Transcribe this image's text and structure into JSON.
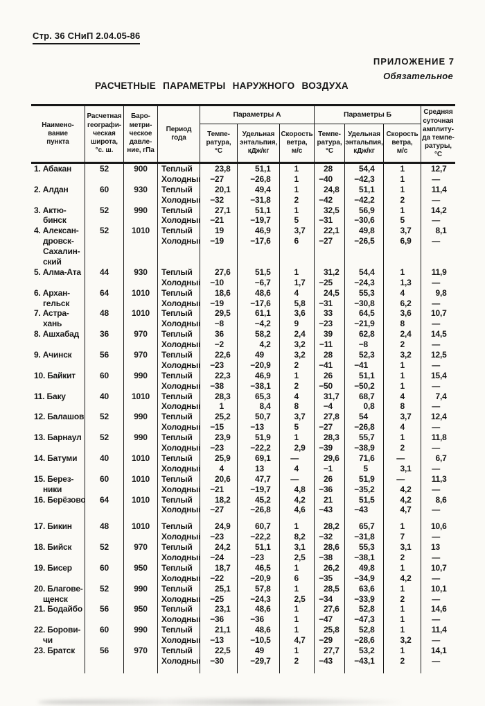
{
  "page": {
    "doc_ref": "Стр. 36 СНиП 2.04.05-86",
    "appendix": "ПРИЛОЖЕНИЕ 7",
    "appendix_note": "Обязательное",
    "title": "РАСЧЕТНЫЕ ПАРАМЕТРЫ НАРУЖНОГО ВОЗДУХА"
  },
  "table": {
    "header": {
      "name": "Наимено-\nвание\nпункта",
      "latitude": "Расчетная\nгеографи-\nческая\nширота,\n°с. ш.",
      "pressure": "Баро-\nметри-\nческое\nдавле-\nние, гПа",
      "period": "Период\nгода",
      "group_a": "Параметры А",
      "group_b": "Параметры Б",
      "temperature": "Темпе-\nратура,\n°С",
      "enthalpy": "Удельная\nэнтальпия,\nкДж/кг",
      "wind": "Скорость\nветра,\nм/с",
      "amplitude": "Средняя\nсуточная\nамплиту-\nда темпе-\nратуры,\n°С"
    },
    "cities": [
      {
        "name_lines": [
          "1. Абакан"
        ],
        "lat": "52",
        "pressure": "900",
        "rows": [
          [
            "Теплый",
            "23,8",
            "51,1",
            "1",
            "28",
            "54,4",
            "1",
            "12,7"
          ],
          [
            "Холодный",
            "−27",
            "−26,8",
            "1",
            "−40",
            "−42,3",
            "1",
            "—"
          ]
        ]
      },
      {
        "name_lines": [
          "2. Алдан"
        ],
        "lat": "60",
        "pressure": "930",
        "rows": [
          [
            "Теплый",
            "20,1",
            "49,4",
            "1",
            "24,8",
            "51,1",
            "1",
            "11,4"
          ],
          [
            "Холодный",
            "−32",
            "−31,8",
            "2",
            "−42",
            "−42,2",
            "2",
            "—"
          ]
        ]
      },
      {
        "name_lines": [
          "3. Актю-",
          "бинск"
        ],
        "lat": "52",
        "pressure": "990",
        "rows": [
          [
            "Теплый",
            "27,1",
            "51,1",
            "1",
            "32,5",
            "56,9",
            "1",
            "14,2"
          ],
          [
            "Холодный",
            "−21",
            "−19,7",
            "5",
            "−31",
            "−30,6",
            "5",
            "—"
          ]
        ]
      },
      {
        "name_lines": [
          "4. Алексан-",
          "дровск-",
          "Сахалин-",
          "ский"
        ],
        "lat": "52",
        "pressure": "1010",
        "rows": [
          [
            "Теплый",
            "19",
            "46,9",
            "3,7",
            "22,1",
            "49,8",
            "3,7",
            "8,1"
          ],
          [
            "Холодный",
            "−19",
            "−17,6",
            "6",
            "−27",
            "−26,5",
            "6,9",
            "—"
          ]
        ]
      },
      {
        "name_lines": [
          "5. Алма-Ата"
        ],
        "lat": "44",
        "pressure": "930",
        "rows": [
          [
            "Теплый",
            "27,6",
            "51,5",
            "1",
            "31,2",
            "54,4",
            "1",
            "11,9"
          ],
          [
            "Холодный",
            "−10",
            "−6,7",
            "1,7",
            "−25",
            "−24,3",
            "1,3",
            "—"
          ]
        ]
      },
      {
        "name_lines": [
          "6. Архан-",
          "гельск"
        ],
        "lat": "64",
        "pressure": "1010",
        "rows": [
          [
            "Теплый",
            "18,6",
            "48,6",
            "4",
            "24,5",
            "55,3",
            "4",
            "9,8"
          ],
          [
            "Холодный",
            "−19",
            "−17,6",
            "5,8",
            "−31",
            "−30,8",
            "6,2",
            "—"
          ]
        ]
      },
      {
        "name_lines": [
          "7. Астра-",
          "хань"
        ],
        "lat": "48",
        "pressure": "1010",
        "rows": [
          [
            "Теплый",
            "29,5",
            "61,1",
            "3,6",
            "33",
            "64,5",
            "3,6",
            "10,7"
          ],
          [
            "Холодный",
            "−8",
            "−4,2",
            "9",
            "−23",
            "−21,9",
            "8",
            "—"
          ]
        ]
      },
      {
        "name_lines": [
          "8. Ашхабад"
        ],
        "lat": "36",
        "pressure": "970",
        "rows": [
          [
            "Теплый",
            "36",
            "58,2",
            "2,4",
            "39",
            "62,8",
            "2,4",
            "14,5"
          ],
          [
            "Холодный",
            "−2",
            "4,2",
            "3,2",
            "−11",
            "−8",
            "2",
            "—"
          ]
        ]
      },
      {
        "name_lines": [
          "9. Ачинск"
        ],
        "lat": "56",
        "pressure": "970",
        "rows": [
          [
            "Теплый",
            "22,6",
            "49",
            "3,2",
            "28",
            "52,3",
            "3,2",
            "12,5"
          ],
          [
            "Холодный",
            "−23",
            "−20,9",
            "2",
            "−41",
            "−41",
            "1",
            "—"
          ]
        ]
      },
      {
        "name_lines": [
          "10. Байкит"
        ],
        "lat": "60",
        "pressure": "990",
        "rows": [
          [
            "Теплый",
            "22,3",
            "46,9",
            "1",
            "26",
            "51,1",
            "1",
            "15,4"
          ],
          [
            "Холодный",
            "−38",
            "−38,1",
            "2",
            "−50",
            "−50,2",
            "1",
            "—"
          ]
        ]
      },
      {
        "name_lines": [
          "11. Баку"
        ],
        "lat": "40",
        "pressure": "1010",
        "rows": [
          [
            "Теплый",
            "28,3",
            "65,3",
            "4",
            "31,7",
            "68,7",
            "4",
            "7,4"
          ],
          [
            "Холодный",
            "1",
            "8,4",
            "8",
            "−4",
            "0,8",
            "8",
            "—"
          ]
        ]
      },
      {
        "name_lines": [
          "12. Балашов"
        ],
        "lat": "52",
        "pressure": "990",
        "rows": [
          [
            "Теплый",
            "25,2",
            "50,7",
            "3,7",
            "27,8",
            "54",
            "3,7",
            "12,4"
          ],
          [
            "Холодный",
            "−15",
            "−13",
            "5",
            "−27",
            "−26,8",
            "4",
            "—"
          ]
        ]
      },
      {
        "name_lines": [
          "13. Барнаул"
        ],
        "lat": "52",
        "pressure": "990",
        "rows": [
          [
            "Теплый",
            "23,9",
            "51,9",
            "1",
            "28,3",
            "55,7",
            "1",
            "11,8"
          ],
          [
            "Холодный",
            "−23",
            "−22,2",
            "2,9",
            "−39",
            "−38,9",
            "2",
            "—"
          ]
        ]
      },
      {
        "name_lines": [
          "14. Батуми"
        ],
        "lat": "40",
        "pressure": "1010",
        "rows": [
          [
            "Теплый",
            "25,9",
            "69,1",
            "—",
            "29,6",
            "71,6",
            "—",
            "6,7"
          ],
          [
            "Холодный",
            "4",
            "13",
            "4",
            "−1",
            "5",
            "3,1",
            "—"
          ]
        ]
      },
      {
        "name_lines": [
          "15. Берез-",
          "ники"
        ],
        "lat": "60",
        "pressure": "1010",
        "rows": [
          [
            "Теплый",
            "20,6",
            "47,7",
            "—",
            "26",
            "51,9",
            "—",
            "11,3"
          ],
          [
            "Холодный",
            "−21",
            "−19,7",
            "4,8",
            "−36",
            "−35,2",
            "4,2",
            "—"
          ]
        ]
      },
      {
        "name_lines": [
          "16. Берёзово"
        ],
        "lat": "64",
        "pressure": "1010",
        "gap_after": true,
        "rows": [
          [
            "Теплый",
            "18,2",
            "45,2",
            "4,2",
            "21",
            "51,5",
            "4,2",
            "8,6"
          ],
          [
            "Холодный",
            "−27",
            "−26,8",
            "4,6",
            "−43",
            "−43",
            "4,7",
            "—"
          ]
        ]
      },
      {
        "name_lines": [
          "17. Бикин"
        ],
        "lat": "48",
        "pressure": "1010",
        "rows": [
          [
            "Теплый",
            "24,9",
            "60,7",
            "1",
            "28,2",
            "65,7",
            "1",
            "10,6"
          ],
          [
            "Холодный",
            "−23",
            "−22,2",
            "8,2",
            "−32",
            "−31,8",
            "7",
            "—"
          ]
        ]
      },
      {
        "name_lines": [
          "18. Бийск"
        ],
        "lat": "52",
        "pressure": "970",
        "rows": [
          [
            "Теплый",
            "24,2",
            "51,1",
            "3,1",
            "28,6",
            "55,3",
            "3,1",
            "13"
          ],
          [
            "Холодный",
            "−24",
            "−23",
            "2,5",
            "−38",
            "−38,1",
            "2",
            "—"
          ]
        ]
      },
      {
        "name_lines": [
          "19. Бисер"
        ],
        "lat": "60",
        "pressure": "950",
        "rows": [
          [
            "Теплый",
            "18,7",
            "46,5",
            "1",
            "26,2",
            "49,8",
            "1",
            "10,7"
          ],
          [
            "Холодный",
            "−22",
            "−20,9",
            "6",
            "−35",
            "−34,9",
            "4,2",
            "—"
          ]
        ]
      },
      {
        "name_lines": [
          "20. Благове-",
          "щенск"
        ],
        "lat": "52",
        "pressure": "990",
        "rows": [
          [
            "Теплый",
            "25,1",
            "57,8",
            "1",
            "28,5",
            "63,6",
            "1",
            "10,1"
          ],
          [
            "Холодный",
            "−25",
            "−24,3",
            "2,5",
            "−34",
            "−33,9",
            "2",
            "—"
          ]
        ]
      },
      {
        "name_lines": [
          "21. Бодайбо"
        ],
        "lat": "56",
        "pressure": "950",
        "rows": [
          [
            "Теплый",
            "23,1",
            "48,6",
            "1",
            "27,6",
            "52,8",
            "1",
            "14,6"
          ],
          [
            "Холодный",
            "−36",
            "−36",
            "1",
            "−47",
            "−47,3",
            "1",
            "—"
          ]
        ]
      },
      {
        "name_lines": [
          "22. Борови-",
          "чи"
        ],
        "lat": "60",
        "pressure": "990",
        "rows": [
          [
            "Теплый",
            "21,1",
            "48,6",
            "1",
            "25,8",
            "52,8",
            "1",
            "11,4"
          ],
          [
            "Холодный",
            "−13",
            "−10,5",
            "4,7",
            "−29",
            "−28,6",
            "3,2",
            "—"
          ]
        ]
      },
      {
        "name_lines": [
          "23. Братск"
        ],
        "lat": "56",
        "pressure": "970",
        "rows": [
          [
            "Теплый",
            "22,5",
            "49",
            "1",
            "27,7",
            "53,2",
            "1",
            "14,1"
          ],
          [
            "Холодный",
            "−30",
            "−29,7",
            "2",
            "−43",
            "−43,1",
            "2",
            "—"
          ]
        ]
      }
    ]
  }
}
